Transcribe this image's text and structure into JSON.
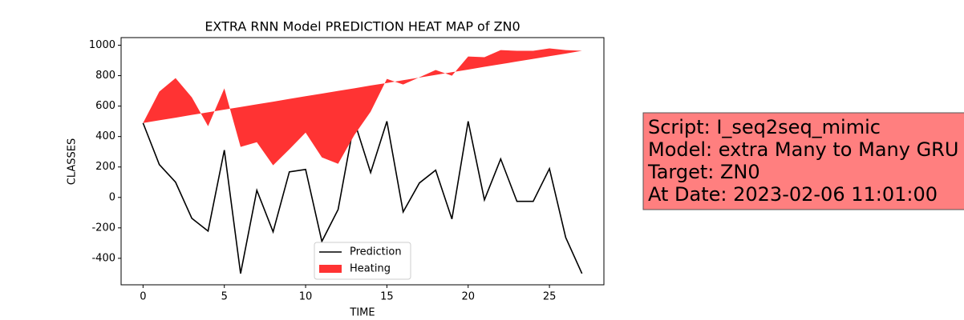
{
  "chart_data": {
    "type": "line",
    "title": "EXTRA RNN Model PREDICTION HEAT MAP of ZN0",
    "xlabel": "TIME",
    "ylabel": "CLASSES",
    "x": [
      0,
      1,
      2,
      3,
      4,
      5,
      6,
      7,
      8,
      9,
      10,
      11,
      12,
      13,
      14,
      15,
      16,
      17,
      18,
      19,
      20,
      21,
      22,
      23,
      24,
      25,
      26,
      27
    ],
    "series": [
      {
        "name": "Prediction",
        "color": "#000000",
        "values": [
          489,
          216,
          100,
          -137,
          -221,
          311,
          -500,
          47,
          -226,
          168,
          184,
          -289,
          -79,
          500,
          163,
          500,
          -95,
          95,
          179,
          -142,
          500,
          -16,
          253,
          -26,
          -26,
          189,
          -263,
          -500
        ]
      },
      {
        "name": "Heating",
        "color": "#ff3333",
        "values": [
          489,
          695,
          784,
          658,
          468,
          716,
          332,
          363,
          211,
          316,
          426,
          263,
          221,
          410,
          563,
          779,
          742,
          789,
          837,
          800,
          926,
          921,
          968,
          963,
          963,
          979,
          968,
          963
        ],
        "base": [
          489,
          507,
          524,
          542,
          559,
          577,
          594,
          612,
          629,
          647,
          665,
          682,
          700,
          717,
          735,
          752,
          770,
          787,
          805,
          823,
          840,
          858,
          875,
          893,
          910,
          928,
          945,
          963
        ]
      }
    ],
    "xlim": [
      -1.35,
      28.35
    ],
    "xticks": [
      0,
      5,
      10,
      15,
      20,
      25
    ],
    "ylim": [
      -574,
      1050
    ],
    "yticks": [
      -400,
      -200,
      0,
      200,
      400,
      600,
      800,
      1000
    ],
    "legend": "lower center",
    "textbox": [
      "Script: I_seq2seq_mimic",
      "Model: extra Many to Many GRU",
      "Target: ZN0",
      "At Date: 2023-02-06 11:01:00"
    ]
  }
}
